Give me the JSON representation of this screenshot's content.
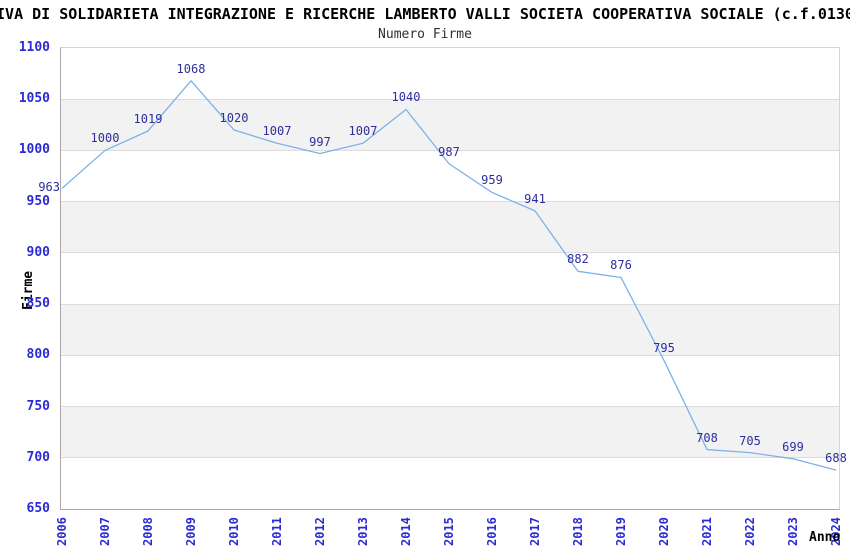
{
  "header": {
    "title": "IVA DI SOLIDARIETA INTEGRAZIONE E RICERCHE LAMBERTO VALLI SOCIETA COOPERATIVA SOCIALE (c.f.0130",
    "subtitle": "Numero Firme"
  },
  "chart_data": {
    "type": "line",
    "title": "Numero Firme",
    "xlabel": "Anno",
    "ylabel": "Firme",
    "x": [
      2006,
      2007,
      2008,
      2009,
      2010,
      2011,
      2012,
      2013,
      2014,
      2015,
      2016,
      2017,
      2018,
      2019,
      2020,
      2021,
      2022,
      2023,
      2024
    ],
    "values": [
      963,
      1000,
      1019,
      1068,
      1020,
      1007,
      997,
      1007,
      1040,
      987,
      959,
      941,
      882,
      876,
      795,
      708,
      705,
      699,
      688
    ],
    "ylim": [
      650,
      1100
    ],
    "ytick_step": 50,
    "grid": true,
    "banded_background": true,
    "legend": "none",
    "data_labels_visible": true,
    "colors": {
      "line": "#7eb1e8",
      "data_label": "#2e2e9e",
      "tick_label": "#2b2bd4",
      "band": "#f2f2f2",
      "gridline": "#dcdcdc",
      "axis": "#a8a8a8",
      "plot_border": "#d6d6d6",
      "title": "#000000",
      "subtitle": "#303030"
    }
  }
}
